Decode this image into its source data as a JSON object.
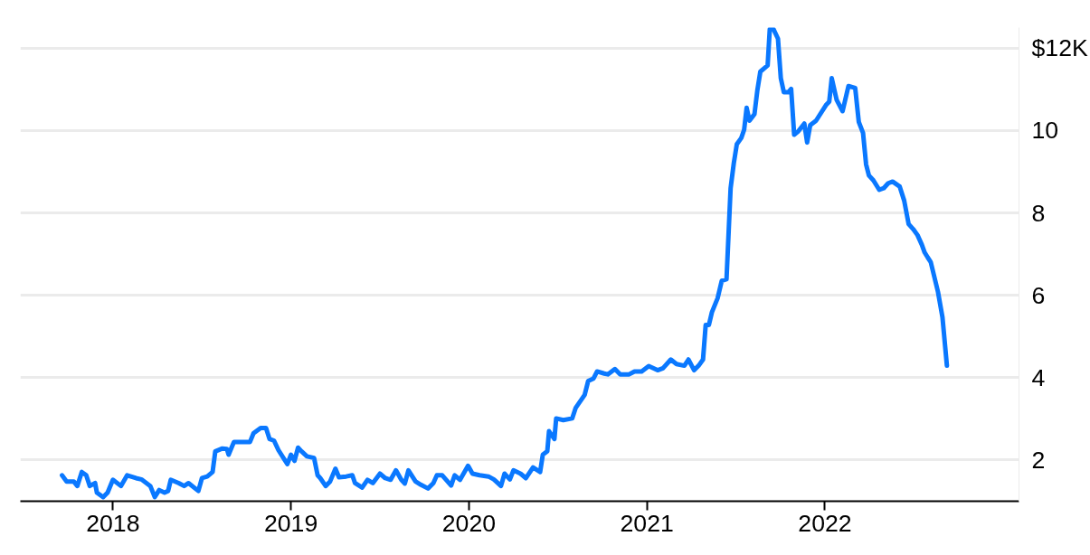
{
  "chart_data": {
    "type": "line",
    "x": [
      2017.714,
      2017.74,
      2017.78,
      2017.8,
      2017.825,
      2017.85,
      2017.87,
      2017.9,
      2017.91,
      2017.945,
      2017.97,
      2018.0,
      2018.045,
      2018.08,
      2018.13,
      2018.16,
      2018.21,
      2018.235,
      2018.26,
      2018.29,
      2018.31,
      2018.325,
      2018.37,
      2018.4,
      2018.425,
      2018.48,
      2018.5,
      2018.53,
      2018.56,
      2018.575,
      2018.615,
      2018.64,
      2018.65,
      2018.68,
      2018.77,
      2018.79,
      2018.83,
      2018.86,
      2018.88,
      2018.905,
      2018.93,
      2018.98,
      2019.0,
      2019.02,
      2019.04,
      2019.06,
      2019.09,
      2019.13,
      2019.15,
      2019.165,
      2019.195,
      2019.22,
      2019.25,
      2019.27,
      2019.31,
      2019.345,
      2019.36,
      2019.4,
      2019.43,
      2019.46,
      2019.5,
      2019.53,
      2019.56,
      2019.59,
      2019.62,
      2019.64,
      2019.66,
      2019.7,
      2019.73,
      2019.77,
      2019.8,
      2019.82,
      2019.85,
      2019.9,
      2019.92,
      2019.95,
      2019.995,
      2020.02,
      2020.06,
      2020.11,
      2020.14,
      2020.18,
      2020.2,
      2020.23,
      2020.25,
      2020.29,
      2020.32,
      2020.36,
      2020.4,
      2020.415,
      2020.44,
      2020.45,
      2020.48,
      2020.49,
      2020.53,
      2020.58,
      2020.6,
      2020.65,
      2020.67,
      2020.7,
      2020.72,
      2020.76,
      2020.78,
      2020.82,
      2020.85,
      2020.9,
      2020.93,
      2020.97,
      2021.01,
      2021.06,
      2021.09,
      2021.134,
      2021.166,
      2021.21,
      2021.233,
      2021.265,
      2021.29,
      2021.315,
      2021.33,
      2021.348,
      2021.365,
      2021.397,
      2021.42,
      2021.447,
      2021.47,
      2021.488,
      2021.505,
      2021.53,
      2021.546,
      2021.56,
      2021.576,
      2021.604,
      2021.62,
      2021.637,
      2021.678,
      2021.69,
      2021.711,
      2021.736,
      2021.752,
      2021.769,
      2021.794,
      2021.81,
      2021.827,
      2021.85,
      2021.884,
      2021.9,
      2021.917,
      2021.95,
      2022.008,
      2022.024,
      2022.038,
      2022.066,
      2022.099,
      2022.132,
      2022.17,
      2022.19,
      2022.214,
      2022.231,
      2022.247,
      2022.272,
      2022.305,
      2022.33,
      2022.355,
      2022.38,
      2022.42,
      2022.445,
      2022.47,
      2022.495,
      2022.52,
      2022.544,
      2022.56,
      2022.577,
      2022.594,
      2022.635,
      2022.66,
      2022.685
    ],
    "series": [
      {
        "color": "#0a78ff",
        "values": [
          1.63,
          1.48,
          1.48,
          1.37,
          1.71,
          1.63,
          1.37,
          1.44,
          1.21,
          1.1,
          1.21,
          1.52,
          1.37,
          1.63,
          1.56,
          1.53,
          1.37,
          1.1,
          1.27,
          1.21,
          1.25,
          1.52,
          1.44,
          1.37,
          1.44,
          1.25,
          1.56,
          1.6,
          1.71,
          2.21,
          2.28,
          2.27,
          2.13,
          2.44,
          2.44,
          2.65,
          2.78,
          2.78,
          2.51,
          2.47,
          2.24,
          1.9,
          2.13,
          1.98,
          2.3,
          2.21,
          2.09,
          2.05,
          1.63,
          1.56,
          1.37,
          1.48,
          1.79,
          1.58,
          1.6,
          1.63,
          1.44,
          1.33,
          1.52,
          1.44,
          1.67,
          1.56,
          1.52,
          1.75,
          1.52,
          1.43,
          1.75,
          1.48,
          1.4,
          1.31,
          1.44,
          1.63,
          1.63,
          1.38,
          1.63,
          1.52,
          1.86,
          1.67,
          1.63,
          1.6,
          1.53,
          1.37,
          1.67,
          1.53,
          1.75,
          1.67,
          1.56,
          1.82,
          1.71,
          2.13,
          2.21,
          2.7,
          2.51,
          3.01,
          2.97,
          3.01,
          3.27,
          3.58,
          3.92,
          3.98,
          4.15,
          4.1,
          4.08,
          4.21,
          4.08,
          4.08,
          4.15,
          4.15,
          4.28,
          4.18,
          4.23,
          4.44,
          4.33,
          4.29,
          4.44,
          4.18,
          4.29,
          4.44,
          5.28,
          5.28,
          5.59,
          5.93,
          6.35,
          6.39,
          8.6,
          9.21,
          9.67,
          9.82,
          10.02,
          10.55,
          10.24,
          10.4,
          10.97,
          11.43,
          11.58,
          12.46,
          12.46,
          12.23,
          11.27,
          10.93,
          10.93,
          11.01,
          9.9,
          9.98,
          10.17,
          9.71,
          10.13,
          10.24,
          10.63,
          10.7,
          11.27,
          10.74,
          10.47,
          11.08,
          11.03,
          10.21,
          9.94,
          9.18,
          8.91,
          8.79,
          8.56,
          8.6,
          8.72,
          8.76,
          8.64,
          8.3,
          7.73,
          7.61,
          7.46,
          7.23,
          7.04,
          6.92,
          6.81,
          6.08,
          5.47,
          4.29
        ]
      }
    ],
    "xlim": [
      2017.48,
      2023.09
    ],
    "xticks": [
      2018,
      2019,
      2020,
      2021,
      2022
    ],
    "ylim": [
      1,
      12.5
    ],
    "yticks": [
      2,
      4,
      6,
      8,
      10,
      {
        "value": 12,
        "label": "$12K"
      }
    ],
    "grid": "y"
  }
}
